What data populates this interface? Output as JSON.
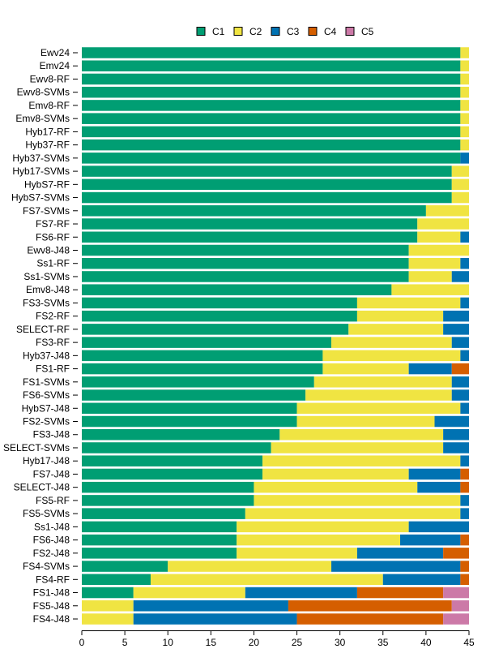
{
  "chart_data": {
    "type": "bar",
    "orientation": "horizontal",
    "stacked": true,
    "categories": [
      "Ewv24",
      "Emv24",
      "Ewv8-RF",
      "Ewv8-SVMs",
      "Emv8-RF",
      "Emv8-SVMs",
      "Hyb17-RF",
      "Hyb37-RF",
      "Hyb37-SVMs",
      "Hyb17-SVMs",
      "HybS7-RF",
      "HybS7-SVMs",
      "FS7-SVMs",
      "FS7-RF",
      "FS6-RF",
      "Ewv8-J48",
      "Ss1-RF",
      "Ss1-SVMs",
      "Emv8-J48",
      "FS3-SVMs",
      "FS2-RF",
      "SELECT-RF",
      "FS3-RF",
      "Hyb37-J48",
      "FS1-RF",
      "FS1-SVMs",
      "FS6-SVMs",
      "HybS7-J48",
      "FS2-SVMs",
      "FS3-J48",
      "SELECT-SVMs",
      "Hyb17-J48",
      "FS7-J48",
      "SELECT-J48",
      "FS5-RF",
      "FS5-SVMs",
      "Ss1-J48",
      "FS6-J48",
      "FS2-J48",
      "FS4-SVMs",
      "FS4-RF",
      "FS1-J48",
      "FS5-J48",
      "FS4-J48"
    ],
    "series": [
      {
        "name": "C1",
        "color": "#009E73",
        "values": [
          44,
          44,
          44,
          44,
          44,
          44,
          44,
          44,
          44,
          43,
          43,
          43,
          40,
          39,
          39,
          38,
          38,
          38,
          36,
          32,
          32,
          31,
          29,
          28,
          28,
          27,
          26,
          25,
          25,
          23,
          22,
          21,
          21,
          20,
          20,
          19,
          18,
          18,
          18,
          10,
          8,
          6,
          0,
          0
        ]
      },
      {
        "name": "C2",
        "color": "#F0E442",
        "values": [
          1,
          1,
          1,
          1,
          1,
          1,
          1,
          1,
          0,
          2,
          2,
          2,
          5,
          6,
          5,
          7,
          6,
          5,
          9,
          12,
          10,
          11,
          14,
          16,
          10,
          16,
          17,
          19,
          16,
          19,
          20,
          23,
          17,
          19,
          24,
          25,
          20,
          19,
          14,
          19,
          27,
          13,
          6,
          6
        ]
      },
      {
        "name": "C3",
        "color": "#0072B2",
        "values": [
          0,
          0,
          0,
          0,
          0,
          0,
          0,
          0,
          1,
          0,
          0,
          0,
          0,
          0,
          1,
          0,
          1,
          2,
          0,
          1,
          3,
          3,
          2,
          1,
          5,
          2,
          2,
          1,
          4,
          3,
          3,
          1,
          6,
          5,
          1,
          1,
          7,
          7,
          10,
          15,
          9,
          13,
          18,
          19
        ]
      },
      {
        "name": "C4",
        "color": "#D55E00",
        "values": [
          0,
          0,
          0,
          0,
          0,
          0,
          0,
          0,
          0,
          0,
          0,
          0,
          0,
          0,
          0,
          0,
          0,
          0,
          0,
          0,
          0,
          0,
          0,
          0,
          2,
          0,
          0,
          0,
          0,
          0,
          0,
          0,
          1,
          1,
          0,
          0,
          0,
          1,
          3,
          1,
          1,
          10,
          19,
          17
        ]
      },
      {
        "name": "C5",
        "color": "#CC79A7",
        "values": [
          0,
          0,
          0,
          0,
          0,
          0,
          0,
          0,
          0,
          0,
          0,
          0,
          0,
          0,
          0,
          0,
          0,
          0,
          0,
          0,
          0,
          0,
          0,
          0,
          0,
          0,
          0,
          0,
          0,
          0,
          0,
          0,
          0,
          0,
          0,
          0,
          0,
          0,
          0,
          0,
          0,
          3,
          2,
          3
        ]
      }
    ],
    "xlim": [
      0,
      45
    ],
    "x_ticks": [
      "0",
      "5",
      "10",
      "15",
      "20",
      "25",
      "30",
      "35",
      "40",
      "45"
    ],
    "xlabel": "",
    "ylabel": "",
    "title": "",
    "grid": false,
    "legend_position": "top"
  }
}
